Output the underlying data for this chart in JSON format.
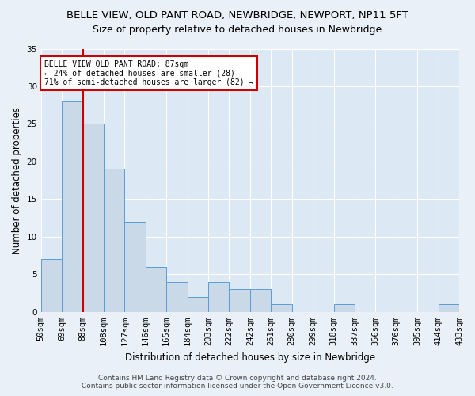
{
  "title1": "BELLE VIEW, OLD PANT ROAD, NEWBRIDGE, NEWPORT, NP11 5FT",
  "title2": "Size of property relative to detached houses in Newbridge",
  "xlabel": "Distribution of detached houses by size in Newbridge",
  "ylabel": "Number of detached properties",
  "bin_labels": [
    "50sqm",
    "69sqm",
    "88sqm",
    "108sqm",
    "127sqm",
    "146sqm",
    "165sqm",
    "184sqm",
    "203sqm",
    "222sqm",
    "242sqm",
    "261sqm",
    "280sqm",
    "299sqm",
    "318sqm",
    "337sqm",
    "356sqm",
    "376sqm",
    "395sqm",
    "414sqm",
    "433sqm"
  ],
  "values": [
    7,
    28,
    25,
    19,
    12,
    6,
    4,
    2,
    4,
    3,
    3,
    1,
    0,
    0,
    1,
    0,
    0,
    0,
    0,
    1
  ],
  "bar_color": "#c9d9e8",
  "bar_edge_color": "#5b9bd5",
  "ref_bin_index": 2,
  "ref_line_color": "#cc0000",
  "annotation_text": "BELLE VIEW OLD PANT ROAD: 87sqm\n← 24% of detached houses are smaller (28)\n71% of semi-detached houses are larger (82) →",
  "annotation_box_color": "#cc0000",
  "ylim": [
    0,
    35
  ],
  "yticks": [
    0,
    5,
    10,
    15,
    20,
    25,
    30,
    35
  ],
  "footer": "Contains HM Land Registry data © Crown copyright and database right 2024.\nContains public sector information licensed under the Open Government Licence v3.0.",
  "bg_color": "#eaf0f8",
  "plot_bg_color": "#dce9f5",
  "grid_color": "#ffffff",
  "title1_fontsize": 9.5,
  "title2_fontsize": 9,
  "label_fontsize": 8.5,
  "tick_fontsize": 7.5,
  "footer_fontsize": 6.5
}
